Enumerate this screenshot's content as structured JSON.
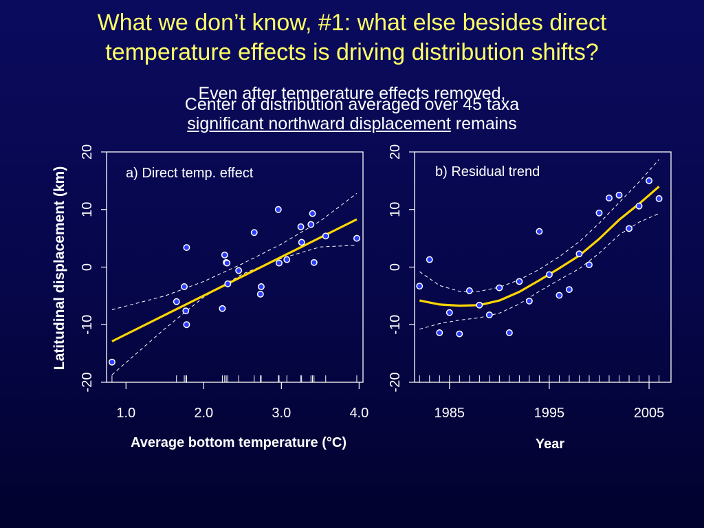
{
  "title_lines": [
    "What we don’t know, #1: what else besides direct",
    "temperature effects is driving distribution shifts?"
  ],
  "subtitle_removed": "Even after temperature effects removed,",
  "subtitle_center": "Center of distribution averaged over 45 taxa",
  "subtitle_significant_underlined": "significant northward displacement",
  "subtitle_significant_rest": " remains",
  "colors": {
    "title": "#ffff66",
    "fit": "#ffd700",
    "point": "#2a3cff",
    "text": "#ffffff"
  },
  "chart_data": [
    {
      "type": "scatter",
      "panel_label": "a) Direct temp. effect",
      "xlabel": "Average bottom temperature (°C)",
      "ylabel": "Latitudinal displacement (km)",
      "xlim": [
        0.75,
        4.05
      ],
      "ylim": [
        -20,
        20
      ],
      "x_ticks": [
        1.0,
        2.0,
        3.0,
        4.0
      ],
      "x_tick_labels": [
        "1.0",
        "2.0",
        "3.0",
        "4.0"
      ],
      "y_ticks": [
        -20,
        -10,
        0,
        10,
        20
      ],
      "y_tick_labels": [
        "-20",
        "-10",
        "0",
        "10",
        "20"
      ],
      "points": [
        [
          0.82,
          -16.5
        ],
        [
          1.65,
          -6.0
        ],
        [
          1.75,
          -3.4
        ],
        [
          1.77,
          -7.6
        ],
        [
          1.78,
          -10.0
        ],
        [
          1.78,
          3.4
        ],
        [
          2.24,
          -7.2
        ],
        [
          2.27,
          2.1
        ],
        [
          2.29,
          0.8
        ],
        [
          2.3,
          0.7
        ],
        [
          2.31,
          -2.9
        ],
        [
          2.45,
          -0.6
        ],
        [
          2.65,
          6.0
        ],
        [
          2.73,
          -4.7
        ],
        [
          2.74,
          -3.4
        ],
        [
          2.96,
          10.0
        ],
        [
          2.97,
          0.7
        ],
        [
          3.07,
          1.3
        ],
        [
          3.25,
          7.0
        ],
        [
          3.26,
          4.3
        ],
        [
          3.38,
          7.4
        ],
        [
          3.4,
          9.3
        ],
        [
          3.42,
          0.8
        ],
        [
          3.57,
          5.4
        ],
        [
          3.97,
          5.0
        ]
      ],
      "fit": {
        "x": [
          0.82,
          3.97
        ],
        "y": [
          -12.9,
          8.3
        ]
      },
      "ci_upper": {
        "x": [
          0.82,
          1.5,
          2.0,
          2.5,
          3.0,
          3.5,
          3.97
        ],
        "y": [
          -7.4,
          -5.0,
          -2.5,
          0.6,
          4.0,
          8.0,
          12.8
        ]
      },
      "ci_lower": {
        "x": [
          0.82,
          1.5,
          2.0,
          2.5,
          3.0,
          3.5,
          3.97
        ],
        "y": [
          -18.7,
          -10.7,
          -5.2,
          -1.2,
          1.5,
          3.5,
          3.8
        ]
      },
      "rug": [
        0.82,
        1.65,
        1.75,
        1.77,
        1.78,
        2.24,
        2.27,
        2.29,
        2.31,
        2.45,
        2.65,
        2.73,
        2.74,
        2.96,
        2.97,
        3.07,
        3.25,
        3.26,
        3.38,
        3.4,
        3.42,
        3.57,
        3.97
      ]
    },
    {
      "type": "scatter",
      "panel_label": "b) Residual trend",
      "xlabel": "Year",
      "ylabel": "",
      "xlim": [
        1981.5,
        2007.2
      ],
      "ylim": [
        -20,
        20
      ],
      "x_ticks": [
        1985,
        1995,
        2005
      ],
      "x_tick_labels": [
        "1985",
        "1995",
        "2005"
      ],
      "y_ticks": [
        -20,
        -10,
        0,
        10,
        20
      ],
      "y_tick_labels": [
        "-20",
        "-10",
        "0",
        "10",
        "20"
      ],
      "points": [
        [
          1982,
          -3.3
        ],
        [
          1983,
          1.3
        ],
        [
          1984,
          -11.4
        ],
        [
          1985,
          -7.9
        ],
        [
          1986,
          -11.6
        ],
        [
          1987,
          -4.1
        ],
        [
          1988,
          -6.6
        ],
        [
          1989,
          -8.3
        ],
        [
          1990,
          -3.6
        ],
        [
          1991,
          -11.4
        ],
        [
          1992,
          -2.5
        ],
        [
          1993,
          -5.9
        ],
        [
          1994,
          6.2
        ],
        [
          1995,
          -1.3
        ],
        [
          1996,
          -4.9
        ],
        [
          1997,
          -3.9
        ],
        [
          1998,
          2.3
        ],
        [
          1999,
          0.4
        ],
        [
          2000,
          9.4
        ],
        [
          2001,
          12.0
        ],
        [
          2002,
          12.5
        ],
        [
          2003,
          6.7
        ],
        [
          2004,
          10.6
        ],
        [
          2005,
          15.0
        ],
        [
          2006,
          11.9
        ]
      ],
      "fit": {
        "x": [
          1982,
          1984,
          1986,
          1988,
          1990,
          1992,
          1994,
          1996,
          1998,
          2000,
          2002,
          2004,
          2006
        ],
        "y": [
          -5.8,
          -6.5,
          -6.7,
          -6.6,
          -5.8,
          -4.3,
          -2.3,
          -0.2,
          2.0,
          4.9,
          8.2,
          11.0,
          14.0
        ]
      },
      "ci_upper": {
        "x": [
          1982,
          1984,
          1986,
          1988,
          1990,
          1992,
          1994,
          1996,
          1998,
          2000,
          2002,
          2004,
          2006
        ],
        "y": [
          -0.8,
          -3.2,
          -4.2,
          -4.2,
          -3.5,
          -2.2,
          -0.4,
          1.8,
          4.4,
          7.6,
          11.2,
          14.8,
          18.7
        ]
      },
      "ci_lower": {
        "x": [
          1982,
          1984,
          1986,
          1988,
          1990,
          1992,
          1994,
          1996,
          1998,
          2000,
          2002,
          2004,
          2006
        ],
        "y": [
          -10.8,
          -9.8,
          -9.2,
          -8.8,
          -8.0,
          -6.4,
          -4.2,
          -2.2,
          -0.3,
          2.4,
          5.6,
          7.8,
          9.3
        ]
      },
      "rug": [
        1982,
        1983,
        1984,
        1985,
        1986,
        1987,
        1988,
        1989,
        1990,
        1991,
        1992,
        1993,
        1994,
        1995,
        1996,
        1997,
        1998,
        1999,
        2000,
        2001,
        2002,
        2003,
        2004,
        2005,
        2006
      ]
    }
  ]
}
